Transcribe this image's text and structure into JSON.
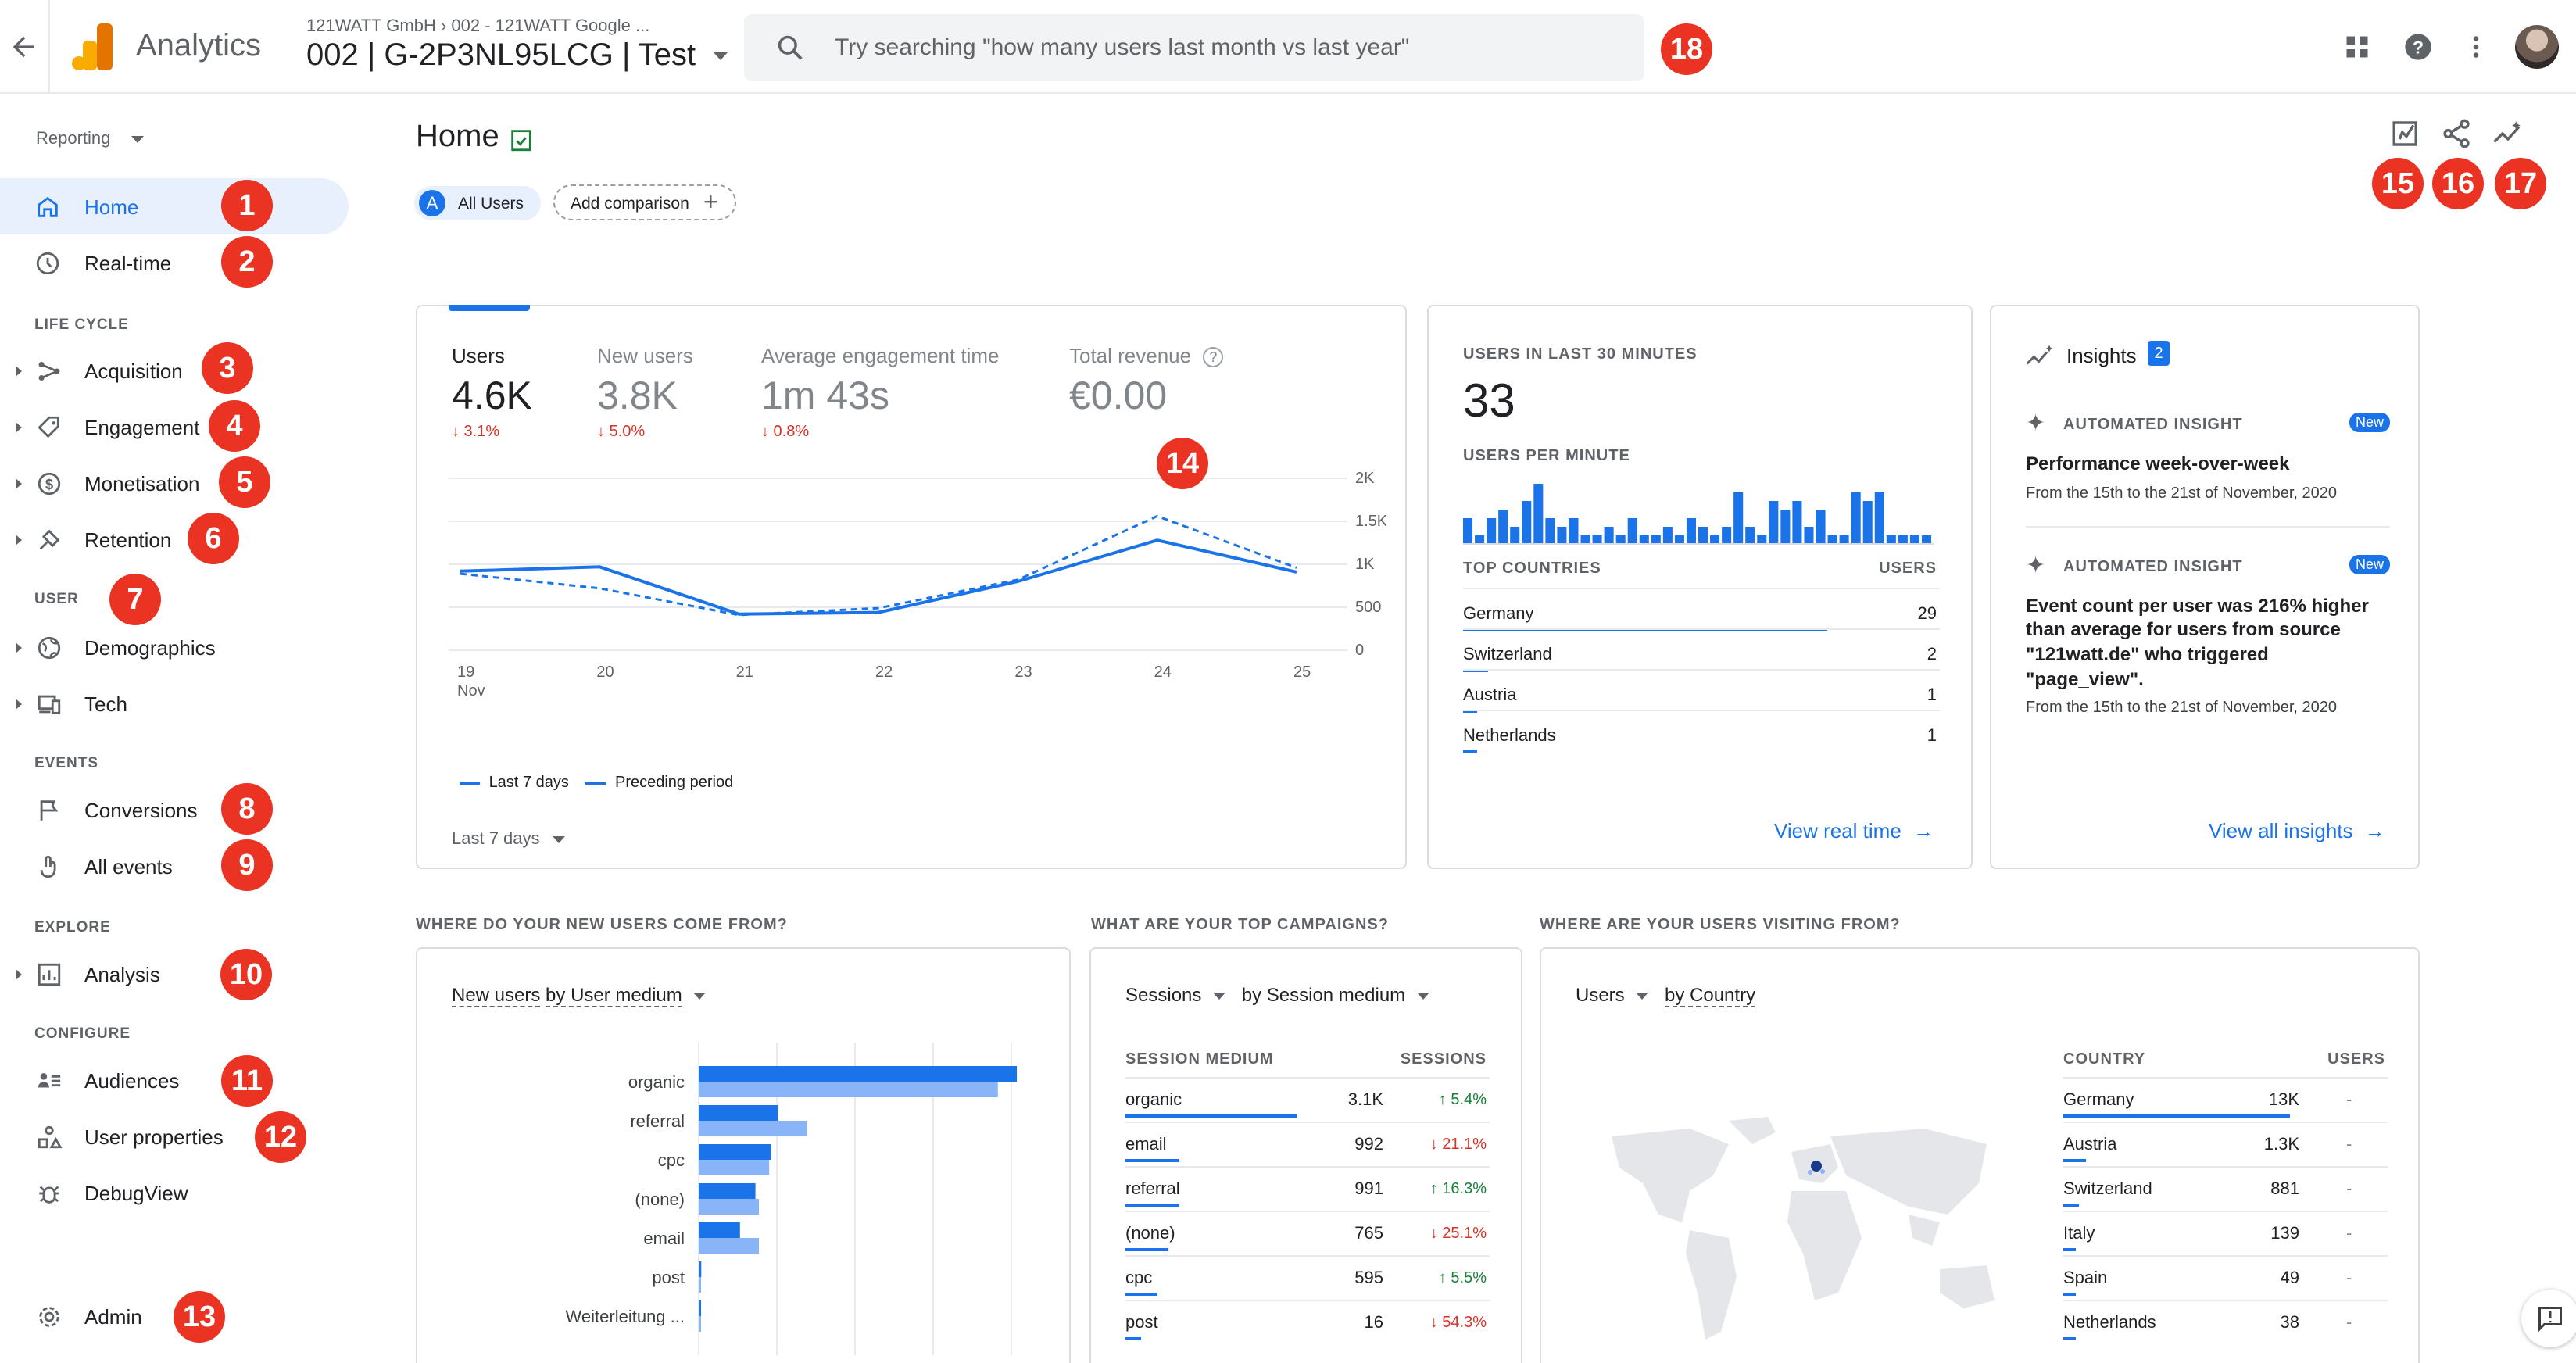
{
  "topbar": {
    "app_title": "Analytics",
    "breadcrumb": "121WATT GmbH  ›  002 - 121WATT Google ...",
    "property": "002 | G-2P3NL95LCG | Test",
    "search_placeholder": "Try searching \"how many users last month vs last year\""
  },
  "sidebar": {
    "reporting_label": "Reporting",
    "items": {
      "home": "Home",
      "realtime": "Real-time",
      "acquisition": "Acquisition",
      "engagement": "Engagement",
      "monetisation": "Monetisation",
      "retention": "Retention",
      "demographics": "Demographics",
      "tech": "Tech",
      "conversions": "Conversions",
      "all_events": "All events",
      "analysis": "Analysis",
      "audiences": "Audiences",
      "user_properties": "User properties",
      "debugview": "DebugView",
      "admin": "Admin"
    },
    "sections": {
      "life_cycle": "LIFE CYCLE",
      "user": "USER",
      "events": "EVENTS",
      "explore": "EXPLORE",
      "configure": "CONFIGURE"
    }
  },
  "badges": [
    "1",
    "2",
    "3",
    "4",
    "5",
    "6",
    "7",
    "8",
    "9",
    "10",
    "11",
    "12",
    "13",
    "14",
    "15",
    "16",
    "17",
    "18"
  ],
  "page": {
    "title": "Home",
    "segment_letter": "A",
    "segment_label": "All Users",
    "add_comparison": "Add comparison"
  },
  "overview": {
    "metrics": [
      {
        "label": "Users",
        "value": "4.6K",
        "change": "↓ 3.1%"
      },
      {
        "label": "New users",
        "value": "3.8K",
        "change": "↓ 5.0%"
      },
      {
        "label": "Average engagement time",
        "value": "1m 43s",
        "change": "↓ 0.8%"
      },
      {
        "label": "Total revenue",
        "value": "€0.00",
        "change": ""
      }
    ],
    "date_range": "Last 7 days",
    "legend_current": "Last 7 days",
    "legend_previous": "Preceding period"
  },
  "chart_data": [
    {
      "type": "line",
      "x": [
        "19 Nov",
        "20",
        "21",
        "22",
        "23",
        "24",
        "25"
      ],
      "y_ticks": [
        "2K",
        "1.5K",
        "1K",
        "500",
        "0"
      ],
      "ylim": [
        0,
        2000
      ],
      "series": [
        {
          "name": "Last 7 days",
          "values": [
            920,
            970,
            420,
            440,
            800,
            1280,
            910
          ]
        },
        {
          "name": "Preceding period",
          "values": [
            890,
            720,
            410,
            490,
            820,
            1560,
            960
          ]
        }
      ]
    },
    {
      "type": "bar",
      "title": "USERS PER MINUTE",
      "values": [
        3,
        1,
        3,
        4,
        2,
        5,
        7,
        3,
        2,
        3,
        1,
        1,
        2,
        1,
        3,
        1,
        1,
        2,
        1,
        3,
        2,
        1,
        2,
        6,
        2,
        1,
        5,
        4,
        5,
        2,
        4,
        1,
        1,
        6,
        5,
        6,
        1,
        1,
        1,
        1
      ]
    },
    {
      "type": "bar",
      "title": "New users by User medium",
      "categories": [
        "organic",
        "referral",
        "cpc",
        "(none)",
        "email",
        "post",
        "Weiterleitung ..."
      ],
      "series": [
        {
          "values": [
            1850,
            460,
            420,
            330,
            240,
            15,
            5
          ]
        },
        {
          "values": [
            1740,
            630,
            410,
            350,
            350,
            10,
            3
          ]
        }
      ]
    }
  ],
  "realtime": {
    "heading": "USERS IN LAST 30 MINUTES",
    "count": "33",
    "per_minute_label": "USERS PER MINUTE",
    "col_country": "TOP COUNTRIES",
    "col_users": "USERS",
    "rows": [
      {
        "country": "Germany",
        "users": "29",
        "share": 0.88
      },
      {
        "country": "Switzerland",
        "users": "2",
        "share": 0.06
      },
      {
        "country": "Austria",
        "users": "1",
        "share": 0.03
      },
      {
        "country": "Netherlands",
        "users": "1",
        "share": 0.03
      }
    ],
    "link": "View real time"
  },
  "insights": {
    "title": "Insights",
    "count": "2",
    "items": [
      {
        "kind": "AUTOMATED INSIGHT",
        "badge": "New",
        "title": "Performance week-over-week",
        "body": "",
        "date": "From the 15th to the 21st of November, 2020"
      },
      {
        "kind": "AUTOMATED INSIGHT",
        "badge": "New",
        "title": "Event count per user was 216% higher",
        "body": "than average for users from source|\"121watt.de\" who triggered|\"page_view\".",
        "date": "From the 15th to the 21st of November, 2020"
      }
    ],
    "link": "View all insights"
  },
  "sections": {
    "new_users": "WHERE DO YOUR NEW USERS COME FROM?",
    "campaigns": "WHAT ARE YOUR TOP CAMPAIGNS?",
    "visiting": "WHERE ARE YOUR USERS VISITING FROM?"
  },
  "new_users_card": {
    "metric": "New users",
    "by": "by User medium"
  },
  "campaigns_card": {
    "metric": "Sessions",
    "by": "by Session medium",
    "col_medium": "SESSION MEDIUM",
    "col_sessions": "SESSIONS",
    "rows": [
      {
        "medium": "organic",
        "sessions": "3.1K",
        "change": "↑ 5.4%",
        "up": true,
        "share": 0.95
      },
      {
        "medium": "email",
        "sessions": "992",
        "change": "↓ 21.1%",
        "up": false,
        "share": 0.3
      },
      {
        "medium": "referral",
        "sessions": "991",
        "change": "↑ 16.3%",
        "up": true,
        "share": 0.3
      },
      {
        "medium": "(none)",
        "sessions": "765",
        "change": "↓ 25.1%",
        "up": false,
        "share": 0.24
      },
      {
        "medium": "cpc",
        "sessions": "595",
        "change": "↑ 5.5%",
        "up": true,
        "share": 0.18
      },
      {
        "medium": "post",
        "sessions": "16",
        "change": "↓ 54.3%",
        "up": false,
        "share": 0.01
      }
    ]
  },
  "country_card": {
    "metric": "Users",
    "by": "by Country",
    "col_country": "COUNTRY",
    "col_users": "USERS",
    "rows": [
      {
        "country": "Germany",
        "users": "13K",
        "dash": "-",
        "share": 1.0
      },
      {
        "country": "Austria",
        "users": "1.3K",
        "dash": "-",
        "share": 0.1
      },
      {
        "country": "Switzerland",
        "users": "881",
        "dash": "-",
        "share": 0.07
      },
      {
        "country": "Italy",
        "users": "139",
        "dash": "-",
        "share": 0.01
      },
      {
        "country": "Spain",
        "users": "49",
        "dash": "-",
        "share": 0.005
      },
      {
        "country": "Netherlands",
        "users": "38",
        "dash": "-",
        "share": 0.003
      }
    ]
  },
  "colors": {
    "accent": "#1a73e8",
    "accent_light": "#8ab4f8",
    "badge": "#ea3323",
    "logo": "#f9ab00",
    "down": "#d93025",
    "up": "#188038"
  }
}
